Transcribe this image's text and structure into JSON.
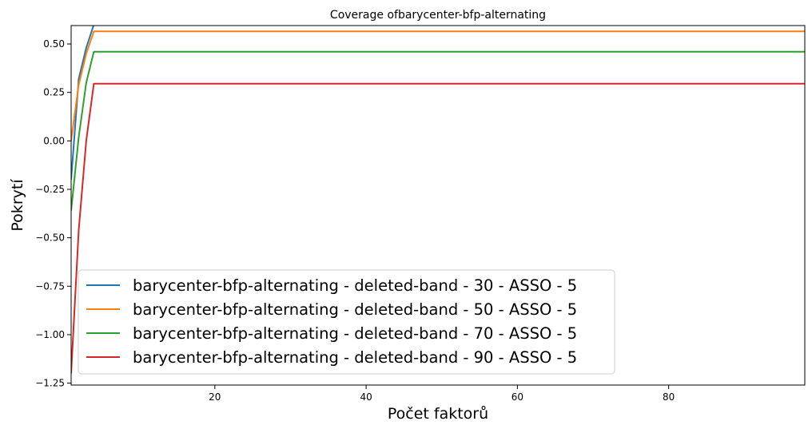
{
  "chart_data": {
    "type": "line",
    "title": "Coverage ofbarycenter-bfp-alternating",
    "xlabel": "Počet faktorů",
    "ylabel": "Pokrytí",
    "xlim": [
      1,
      98
    ],
    "ylim": [
      -1.26,
      0.595
    ],
    "xticks": [
      20,
      40,
      60,
      80
    ],
    "yticks": [
      0.5,
      0.25,
      0.0,
      -0.25,
      -0.5,
      -0.75,
      -1.0,
      -1.25
    ],
    "ytick_labels": [
      "0.50",
      "0.25",
      "0.00",
      "−0.25",
      "−0.50",
      "−0.75",
      "−1.00",
      "−1.25"
    ],
    "grid": false,
    "legend_position": "lower-left",
    "series": [
      {
        "name": "barycenter-bfp-alternating - deleted-band - 30 - ASSO - 5",
        "color": "#1f77b4",
        "x": [
          1,
          2,
          3,
          4,
          5,
          98
        ],
        "y": [
          -0.2,
          0.32,
          0.48,
          0.6,
          0.66,
          0.66
        ]
      },
      {
        "name": "barycenter-bfp-alternating - deleted-band - 50 - ASSO - 5",
        "color": "#ff7f0e",
        "x": [
          1,
          2,
          3,
          4,
          98
        ],
        "y": [
          0.0,
          0.29,
          0.45,
          0.565,
          0.565
        ]
      },
      {
        "name": "barycenter-bfp-alternating - deleted-band - 70 - ASSO - 5",
        "color": "#2ca02c",
        "x": [
          1,
          2,
          3,
          4,
          98
        ],
        "y": [
          -0.36,
          0.02,
          0.3,
          0.46,
          0.46
        ]
      },
      {
        "name": "barycenter-bfp-alternating - deleted-band - 90 - ASSO - 5",
        "color": "#d62728",
        "x": [
          1,
          2,
          3,
          4,
          98
        ],
        "y": [
          -1.2,
          -0.46,
          0.0,
          0.295,
          0.295
        ]
      }
    ]
  }
}
